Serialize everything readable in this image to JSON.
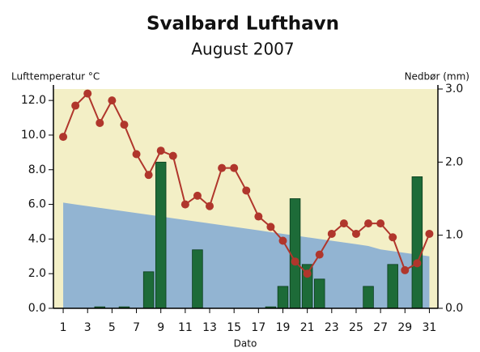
{
  "chart_data": {
    "type": "bar-line",
    "title": "Svalbard Lufthavn",
    "subtitle": "August 2007",
    "y_label": "Lufttemperatur °C",
    "y2_label": "Nedbør (mm)",
    "x_label": "Dato",
    "x": [
      1,
      2,
      3,
      4,
      5,
      6,
      7,
      8,
      9,
      10,
      11,
      12,
      13,
      14,
      15,
      16,
      17,
      18,
      19,
      20,
      21,
      22,
      23,
      24,
      25,
      26,
      27,
      28,
      29,
      30,
      31
    ],
    "xlim": [
      0.2,
      31.7
    ],
    "xticks": [
      1,
      3,
      5,
      7,
      9,
      11,
      13,
      15,
      17,
      19,
      21,
      23,
      25,
      27,
      29,
      31
    ],
    "ylim": [
      0,
      12.66
    ],
    "yticks": [
      {
        "value": 0,
        "label": "0.0"
      },
      {
        "value": 2,
        "label": "2.0"
      },
      {
        "value": 4,
        "label": "4.0"
      },
      {
        "value": 6,
        "label": "6.0"
      },
      {
        "value": 8,
        "label": "8.0"
      },
      {
        "value": 10,
        "label": "10.0"
      },
      {
        "value": 12,
        "label": "12.0"
      }
    ],
    "y2lim": [
      0,
      3
    ],
    "y2ticks": [
      {
        "value": 0,
        "label": "0.0"
      },
      {
        "value": 1,
        "label": "1.0"
      },
      {
        "value": 2,
        "label": "2.0"
      },
      {
        "value": 3,
        "label": "3.0"
      }
    ],
    "background_color": "#f3efc6",
    "series": [
      {
        "type": "area",
        "color": "#92b4d2",
        "values": [
          6.1,
          6.0,
          5.9,
          5.8,
          5.7,
          5.6,
          5.5,
          5.4,
          5.3,
          5.2,
          5.1,
          5.0,
          4.9,
          4.8,
          4.7,
          4.6,
          4.5,
          4.4,
          4.3,
          4.2,
          4.1,
          4.0,
          3.9,
          3.8,
          3.7,
          3.6,
          3.4,
          3.3,
          3.2,
          3.1,
          3.0
        ]
      },
      {
        "type": "bar",
        "axis": "y2",
        "color": "#1d6b38",
        "values": [
          0,
          0,
          0,
          0.02,
          0,
          0.02,
          0,
          0.5,
          2.0,
          0,
          0,
          0.8,
          0,
          0,
          0,
          0,
          0,
          0.02,
          0.3,
          1.5,
          0.6,
          0.4,
          0,
          0,
          0,
          0.3,
          0,
          0.6,
          0,
          1.8,
          0
        ]
      },
      {
        "type": "line",
        "color": "#b0362c",
        "values": [
          9.9,
          11.7,
          12.4,
          10.7,
          12.0,
          10.6,
          8.9,
          7.7,
          9.1,
          8.8,
          6.0,
          6.5,
          5.9,
          8.1,
          8.1,
          6.8,
          5.3,
          4.7,
          3.9,
          2.7,
          2.0,
          3.1,
          4.3,
          4.9,
          4.3,
          4.9,
          4.9,
          4.1,
          2.2,
          2.6,
          4.3
        ]
      }
    ]
  }
}
